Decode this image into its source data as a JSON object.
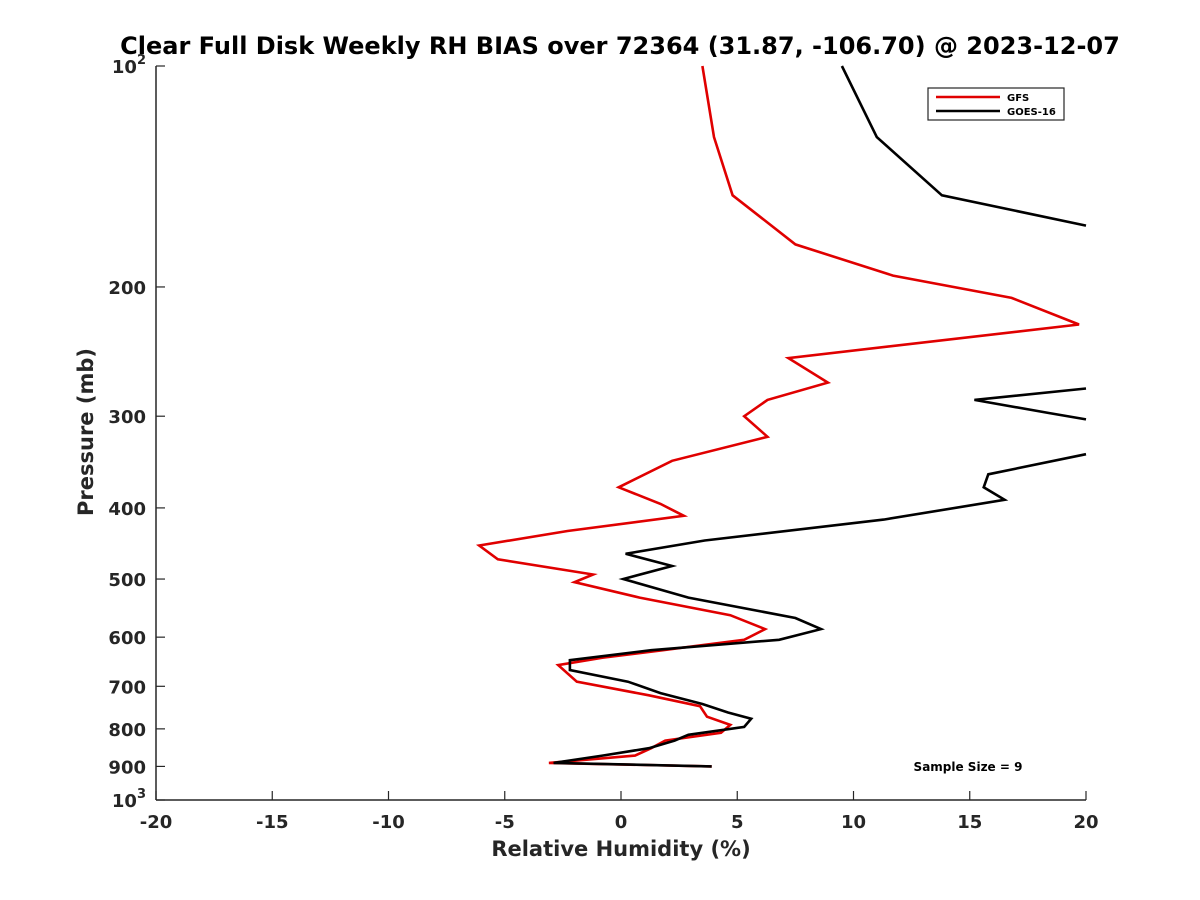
{
  "chart_data": {
    "type": "line",
    "title": "Clear Full Disk Weekly RH BIAS over 72364 (31.87, -106.70) @ 2023-12-07",
    "xlabel": "Relative Humidity (%)",
    "ylabel": "Pressure (mb)",
    "xlim": [
      -20,
      20
    ],
    "ylim": [
      100,
      1000
    ],
    "y_scale": "log",
    "y_reversed": true,
    "x_ticks": [
      "-20",
      "-15",
      "-10",
      "-5",
      "0",
      "5",
      "10",
      "15",
      "20"
    ],
    "y_ticks": [
      {
        "value": 100,
        "base": "10",
        "exp": "2"
      },
      {
        "value": 200,
        "label": "200"
      },
      {
        "value": 300,
        "label": "300"
      },
      {
        "value": 400,
        "label": "400"
      },
      {
        "value": 500,
        "label": "500"
      },
      {
        "value": 600,
        "label": "600"
      },
      {
        "value": 700,
        "label": "700"
      },
      {
        "value": 800,
        "label": "800"
      },
      {
        "value": 900,
        "label": "900"
      },
      {
        "value": 1000,
        "base": "10",
        "exp": "3"
      }
    ],
    "grid": false,
    "legend_position": "top-right",
    "series": [
      {
        "name": "GFS",
        "color": "#e00000",
        "points": [
          [
            3.5,
            100
          ],
          [
            4.0,
            125
          ],
          [
            4.8,
            150
          ],
          [
            7.5,
            175
          ],
          [
            11.7,
            193
          ],
          [
            16.8,
            207
          ],
          [
            19.7,
            225
          ],
          [
            7.2,
            250
          ],
          [
            8.9,
            270
          ],
          [
            6.3,
            285
          ],
          [
            5.3,
            300
          ],
          [
            6.3,
            320
          ],
          [
            2.2,
            345
          ],
          [
            -0.1,
            375
          ],
          [
            1.7,
            395
          ],
          [
            2.7,
            410
          ],
          [
            -2.3,
            430
          ],
          [
            -6.1,
            450
          ],
          [
            -5.3,
            470
          ],
          [
            -1.2,
            493
          ],
          [
            -2.0,
            505
          ],
          [
            0.8,
            530
          ],
          [
            4.7,
            560
          ],
          [
            6.2,
            585
          ],
          [
            5.3,
            605
          ],
          [
            1.8,
            625
          ],
          [
            -0.8,
            640
          ],
          [
            -2.7,
            655
          ],
          [
            -1.9,
            690
          ],
          [
            1.2,
            720
          ],
          [
            3.4,
            745
          ],
          [
            3.7,
            770
          ],
          [
            4.7,
            790
          ],
          [
            4.3,
            810
          ],
          [
            1.9,
            830
          ],
          [
            1.3,
            850
          ],
          [
            0.6,
            870
          ],
          [
            -3.1,
            890
          ],
          [
            3.9,
            900
          ]
        ]
      },
      {
        "name": "GOES-16",
        "color": "#000000",
        "points": [
          [
            9.5,
            100
          ],
          [
            11.0,
            125
          ],
          [
            13.8,
            150
          ],
          [
            20.0,
            165
          ],
          [
            null,
            null
          ],
          [
            20.0,
            275
          ],
          [
            15.2,
            285
          ],
          [
            18.4,
            297
          ],
          [
            20.0,
            303
          ],
          [
            null,
            null
          ],
          [
            20.0,
            338
          ],
          [
            15.8,
            360
          ],
          [
            15.6,
            375
          ],
          [
            16.5,
            390
          ],
          [
            11.3,
            415
          ],
          [
            3.6,
            443
          ],
          [
            0.2,
            462
          ],
          [
            2.2,
            480
          ],
          [
            0.1,
            500
          ],
          [
            2.9,
            530
          ],
          [
            7.5,
            565
          ],
          [
            8.6,
            585
          ],
          [
            6.8,
            605
          ],
          [
            1.3,
            625
          ],
          [
            -2.2,
            645
          ],
          [
            -2.2,
            665
          ],
          [
            0.3,
            690
          ],
          [
            1.7,
            715
          ],
          [
            3.5,
            740
          ],
          [
            4.6,
            760
          ],
          [
            5.6,
            775
          ],
          [
            5.3,
            795
          ],
          [
            2.9,
            815
          ],
          [
            2.3,
            830
          ],
          [
            1.2,
            850
          ],
          [
            -0.8,
            870
          ],
          [
            -2.9,
            890
          ],
          [
            3.9,
            900
          ]
        ]
      }
    ],
    "annotation": "Sample Size = 9"
  }
}
